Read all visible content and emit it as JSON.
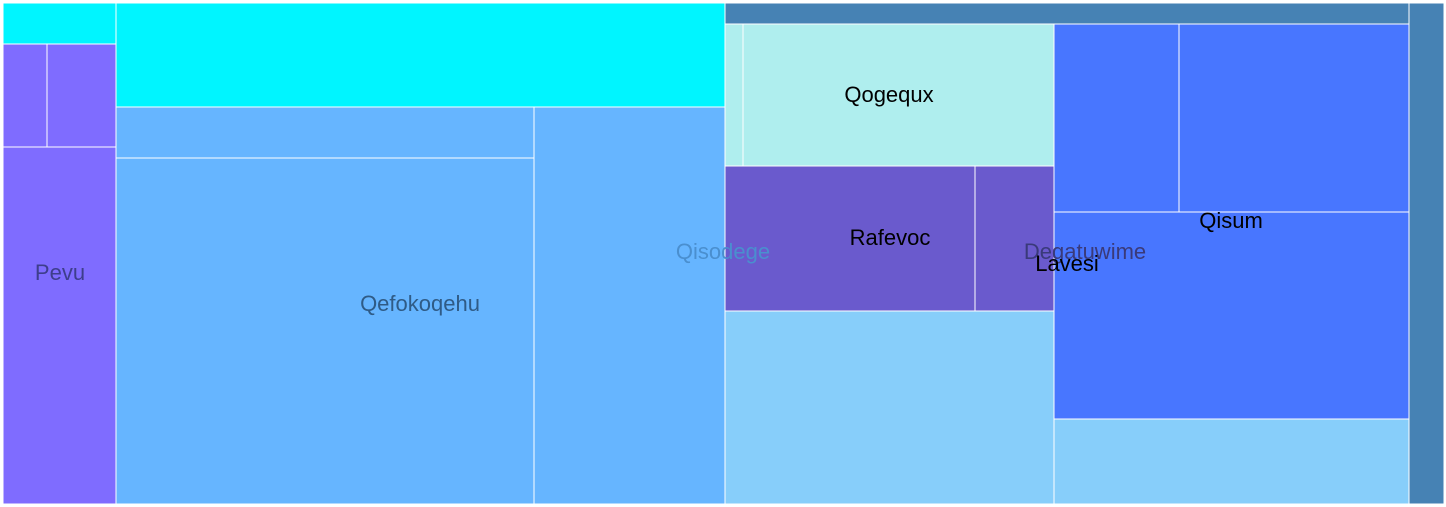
{
  "chart_data": {
    "type": "treemap",
    "labels": [
      {
        "id": "pevu",
        "text": "Pevu",
        "color": "#3e3e8c"
      },
      {
        "id": "qefokoqehu",
        "text": "Qefokoqehu",
        "color": "#2f5b86"
      },
      {
        "id": "qisodege",
        "text": "Qisodege",
        "color": "#4a8fcf"
      },
      {
        "id": "qogequx",
        "text": "Qogequx",
        "color": "#000000"
      },
      {
        "id": "rafevoc",
        "text": "Rafevoc",
        "color": "#000000"
      },
      {
        "id": "degatuwime",
        "text": "Degatuwime",
        "color": "#3a3a7a"
      },
      {
        "id": "lavesi",
        "text": "Lavesi",
        "color": "#000000"
      },
      {
        "id": "qisum",
        "text": "Qisum",
        "color": "#000000"
      }
    ],
    "colors": {
      "cyan": "#00f5ff",
      "purple": "#7f6cff",
      "sky": "#66b5ff",
      "steel": "#4682b4",
      "pale_turquoise": "#afeeee",
      "slate_purple": "#6a5acd",
      "light_sky": "#87cefa",
      "royal_blue": "#4876ff"
    }
  }
}
